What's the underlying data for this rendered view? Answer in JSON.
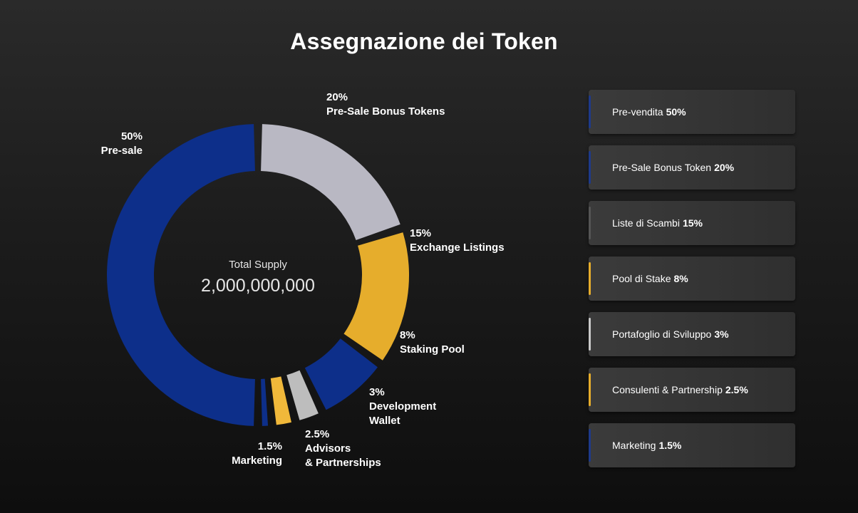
{
  "title": "Assegnazione dei Token",
  "center": {
    "label": "Total Supply",
    "value": "2,000,000,000"
  },
  "chart_data": {
    "type": "pie",
    "variant": "donut",
    "slices": [
      {
        "pct_label": "20%",
        "name_lines": [
          "Pre-Sale Bonus Tokens"
        ],
        "value": 20,
        "color": "#b9b8c3"
      },
      {
        "pct_label": "15%",
        "name_lines": [
          "Exchange Listings"
        ],
        "value": 15,
        "color": "#e6ad2c"
      },
      {
        "pct_label": "8%",
        "name_lines": [
          "Staking Pool"
        ],
        "value": 8,
        "color": "#0d2f8a"
      },
      {
        "pct_label": "3%",
        "name_lines": [
          "Development",
          "Wallet"
        ],
        "value": 3,
        "color": "#bdbdbd"
      },
      {
        "pct_label": "2.5%",
        "name_lines": [
          "Advisors",
          "& Partnerships"
        ],
        "value": 2.5,
        "color": "#f0b83a"
      },
      {
        "pct_label": "1.5%",
        "name_lines": [
          "Marketing"
        ],
        "value": 1.5,
        "color": "#0d2f8a"
      },
      {
        "pct_label": "50%",
        "name_lines": [
          "Pre-sale"
        ],
        "value": 50,
        "color": "#0d2f8a"
      }
    ]
  },
  "legend": [
    {
      "label": "Pre-vendita",
      "pct": "50%",
      "accent": "#1e3a8a"
    },
    {
      "label": "Pre-Sale Bonus Token",
      "pct": "20%",
      "accent": "#1e3a8a"
    },
    {
      "label": "Liste di Scambi",
      "pct": "15%",
      "accent": "#555555"
    },
    {
      "label": "Pool di Stake",
      "pct": "8%",
      "accent": "#e6ad2c"
    },
    {
      "label": "Portafoglio di Sviluppo",
      "pct": "3%",
      "accent": "#c8c8c8"
    },
    {
      "label": "Consulenti & Partnership",
      "pct": "2.5%",
      "accent": "#e6ad2c"
    },
    {
      "label": "Marketing",
      "pct": "1.5%",
      "accent": "#1e3a8a"
    }
  ]
}
